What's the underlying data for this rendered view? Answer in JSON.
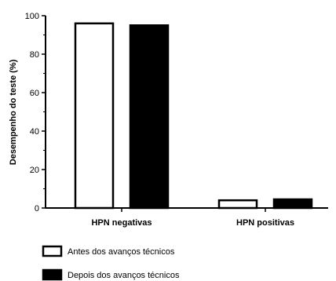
{
  "chart_data": {
    "type": "bar",
    "title": "",
    "xlabel": "",
    "ylabel": "Desempenho do teste (%)",
    "ylim": [
      0,
      100
    ],
    "yticks": [
      0,
      20,
      40,
      60,
      80,
      100
    ],
    "categories": [
      "HPN negativas",
      "HPN positivas"
    ],
    "series": [
      {
        "name": "Antes dos avanços técnicos",
        "values": [
          96,
          4
        ],
        "fill": "#ffffff"
      },
      {
        "name": "Depois dos avanços técnicos",
        "values": [
          95,
          4.5
        ],
        "fill": "#000000"
      }
    ],
    "grid": false,
    "legend": "bottom"
  }
}
